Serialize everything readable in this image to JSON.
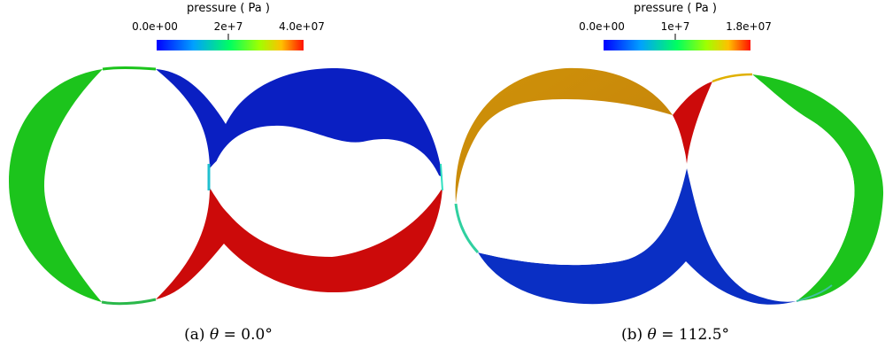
{
  "panels": [
    {
      "colorbar": {
        "title": "pressure ( Pa )",
        "ticks": [
          "0.0e+00",
          "2e+7",
          "4.0e+07"
        ]
      },
      "caption": {
        "label": "(a)",
        "symbol": "θ",
        "equals": "=",
        "value": "0.0°"
      },
      "regions": {
        "left_pocket": "#1cc41c",
        "upper_right": "#0a1fc2",
        "lower_right": "#cc0a0a"
      }
    },
    {
      "colorbar": {
        "title": "pressure ( Pa )",
        "ticks": [
          "0.0e+00",
          "1e+7",
          "1.8e+07"
        ]
      },
      "caption": {
        "label": "(b)",
        "symbol": "θ",
        "equals": "=",
        "value": "112.5°"
      },
      "regions": {
        "upper_left": "#c98a0a",
        "small_red": "#cc0a0a",
        "right_pocket": "#1cc41c",
        "lower_band": "#0a2fc4"
      }
    }
  ],
  "colormap": [
    "#0000ff",
    "#00a0ff",
    "#00ff80",
    "#40ff00",
    "#ffe000",
    "#ff2000"
  ]
}
